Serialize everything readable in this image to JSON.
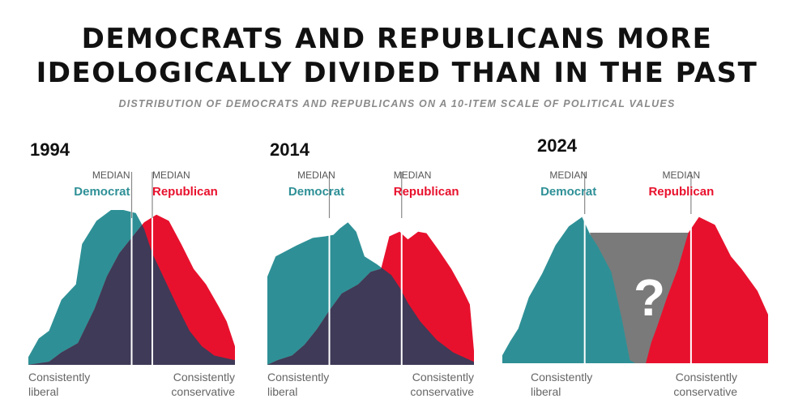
{
  "title_line1": "DEMOCRATS AND REPUBLICANS MORE",
  "title_line2": "IDEOLOGICALLY DIVIDED THAN IN THE PAST",
  "subtitle": "DISTRIBUTION OF DEMOCRATS AND REPUBLICANS ON A 10-ITEM SCALE OF POLITICAL VALUES",
  "colors": {
    "democrat": "#2e9096",
    "republican": "#e8112d",
    "overlap": "#3f3a57",
    "unknown": "#7a7a7a"
  },
  "labels": {
    "median": "MEDIAN",
    "democrat": "Democrat",
    "republican": "Republican",
    "left_line1": "Consistently",
    "left_line2": "liberal",
    "right_line1": "Consistently",
    "right_line2": "conservative",
    "unknown_mark": "?"
  },
  "chart_data": [
    {
      "type": "area",
      "year": "1994",
      "x_range": [
        0,
        10
      ],
      "x_left_label": "Consistently liberal",
      "x_right_label": "Consistently conservative",
      "median_democrat": 5.0,
      "median_republican": 6.0,
      "democrat": [
        [
          0,
          0.05
        ],
        [
          0.5,
          0.17
        ],
        [
          1,
          0.22
        ],
        [
          1.6,
          0.42
        ],
        [
          2.3,
          0.52
        ],
        [
          2.6,
          0.78
        ],
        [
          3.3,
          0.93
        ],
        [
          4.0,
          1.0
        ],
        [
          4.6,
          1.0
        ],
        [
          5.2,
          0.98
        ],
        [
          5.6,
          0.88
        ],
        [
          6.0,
          0.72
        ],
        [
          6.6,
          0.55
        ],
        [
          7.2,
          0.38
        ],
        [
          7.8,
          0.22
        ],
        [
          8.4,
          0.12
        ],
        [
          9.0,
          0.06
        ],
        [
          10,
          0.03
        ]
      ],
      "republican": [
        [
          0,
          0.0
        ],
        [
          1.0,
          0.02
        ],
        [
          1.6,
          0.08
        ],
        [
          2.4,
          0.14
        ],
        [
          3.2,
          0.36
        ],
        [
          3.8,
          0.57
        ],
        [
          4.4,
          0.72
        ],
        [
          5.0,
          0.82
        ],
        [
          5.6,
          0.92
        ],
        [
          6.2,
          0.97
        ],
        [
          6.8,
          0.93
        ],
        [
          7.4,
          0.78
        ],
        [
          8.0,
          0.62
        ],
        [
          8.6,
          0.52
        ],
        [
          9.2,
          0.38
        ],
        [
          9.6,
          0.28
        ],
        [
          10,
          0.12
        ]
      ]
    },
    {
      "type": "area",
      "year": "2014",
      "x_range": [
        0,
        10
      ],
      "x_left_label": "Consistently liberal",
      "x_right_label": "Consistently conservative",
      "median_democrat": 3.0,
      "median_republican": 6.5,
      "democrat": [
        [
          0,
          0.57
        ],
        [
          0.4,
          0.7
        ],
        [
          1.4,
          0.77
        ],
        [
          2.2,
          0.82
        ],
        [
          2.8,
          0.83
        ],
        [
          3.2,
          0.84
        ],
        [
          3.5,
          0.88
        ],
        [
          3.9,
          0.92
        ],
        [
          4.3,
          0.86
        ],
        [
          4.7,
          0.7
        ],
        [
          5.3,
          0.65
        ],
        [
          6.0,
          0.58
        ],
        [
          6.4,
          0.5
        ],
        [
          6.8,
          0.4
        ],
        [
          7.4,
          0.28
        ],
        [
          8.2,
          0.16
        ],
        [
          9.0,
          0.08
        ],
        [
          10,
          0.02
        ]
      ],
      "republican": [
        [
          0,
          0.0
        ],
        [
          0.5,
          0.03
        ],
        [
          1.2,
          0.06
        ],
        [
          1.8,
          0.13
        ],
        [
          2.4,
          0.23
        ],
        [
          3.0,
          0.35
        ],
        [
          3.6,
          0.46
        ],
        [
          4.4,
          0.52
        ],
        [
          5.0,
          0.6
        ],
        [
          5.5,
          0.62
        ],
        [
          5.9,
          0.83
        ],
        [
          6.4,
          0.86
        ],
        [
          6.8,
          0.81
        ],
        [
          7.3,
          0.86
        ],
        [
          7.7,
          0.85
        ],
        [
          8.3,
          0.74
        ],
        [
          8.9,
          0.62
        ],
        [
          9.4,
          0.5
        ],
        [
          9.8,
          0.39
        ],
        [
          10,
          0.09
        ]
      ]
    },
    {
      "type": "area",
      "year": "2024",
      "x_range": [
        0,
        10
      ],
      "x_left_label": "Consistently liberal",
      "x_right_label": "Consistently conservative",
      "median_democrat": 3.1,
      "median_republican": 7.1,
      "unknown_middle": "?",
      "democrat": [
        [
          0,
          0.05
        ],
        [
          0.3,
          0.14
        ],
        [
          0.6,
          0.22
        ],
        [
          1.0,
          0.42
        ],
        [
          1.5,
          0.57
        ],
        [
          2.0,
          0.75
        ],
        [
          2.5,
          0.87
        ],
        [
          3.0,
          0.93
        ],
        [
          3.3,
          0.82
        ],
        [
          3.6,
          0.74
        ],
        [
          4.1,
          0.58
        ],
        [
          4.5,
          0.28
        ],
        [
          4.8,
          0.02
        ],
        [
          5.0,
          0.0
        ]
      ],
      "republican": [
        [
          5.4,
          0.0
        ],
        [
          5.6,
          0.13
        ],
        [
          5.8,
          0.22
        ],
        [
          6.2,
          0.42
        ],
        [
          6.6,
          0.6
        ],
        [
          7.0,
          0.83
        ],
        [
          7.4,
          0.93
        ],
        [
          8.0,
          0.88
        ],
        [
          8.6,
          0.68
        ],
        [
          9.0,
          0.6
        ],
        [
          9.6,
          0.46
        ],
        [
          10,
          0.31
        ],
        [
          10,
          0.0
        ]
      ]
    }
  ]
}
